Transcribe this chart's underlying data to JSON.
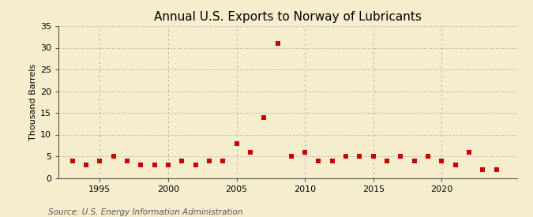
{
  "title": "Annual U.S. Exports to Norway of Lubricants",
  "ylabel": "Thousand Barrels",
  "source": "Source: U.S. Energy Information Administration",
  "background_color": "#f5edce",
  "years": [
    1993,
    1994,
    1995,
    1996,
    1997,
    1998,
    1999,
    2000,
    2001,
    2002,
    2003,
    2004,
    2005,
    2006,
    2007,
    2008,
    2009,
    2010,
    2011,
    2012,
    2013,
    2014,
    2015,
    2016,
    2017,
    2018,
    2019,
    2020,
    2021,
    2022,
    2023,
    2024
  ],
  "values": [
    4,
    3,
    4,
    5,
    4,
    3,
    3,
    3,
    4,
    3,
    4,
    4,
    8,
    6,
    14,
    31,
    5,
    6,
    4,
    4,
    5,
    5,
    5,
    4,
    5,
    4,
    5,
    4,
    3,
    6,
    2,
    2
  ],
  "marker_color": "#cc0000",
  "marker_size": 18,
  "ylim": [
    0,
    35
  ],
  "yticks": [
    0,
    5,
    10,
    15,
    20,
    25,
    30,
    35
  ],
  "xticks": [
    1995,
    2000,
    2005,
    2010,
    2015,
    2020
  ],
  "xlim": [
    1992.0,
    2025.5
  ],
  "grid_color": "#aaaaaa",
  "title_fontsize": 11,
  "label_fontsize": 8,
  "tick_fontsize": 8,
  "source_fontsize": 7.5
}
